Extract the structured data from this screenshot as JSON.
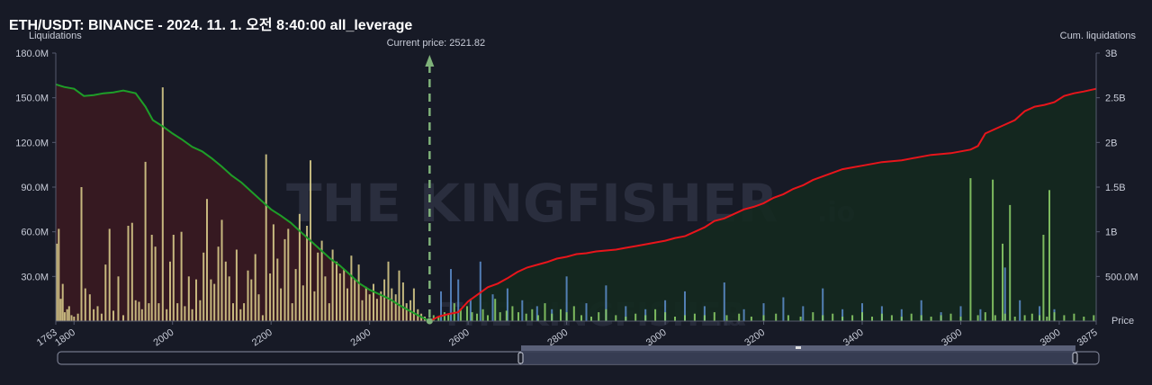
{
  "title": "ETH/USDT: BINANCE - 2024. 11. 1. 오전 8:40:00 all_leverage",
  "watermark": {
    "text": "THE KINGFISHER",
    "suffix": ".io"
  },
  "colors": {
    "background": "#171a26",
    "long_bars": "#e0d48e",
    "short_bars_green": "#8ed46a",
    "short_bars_blue": "#5d8fcf",
    "cum_long_line": "#1e9e28",
    "cum_short_line": "#e8151b",
    "cum_long_fill": "#3a1a21",
    "cum_short_fill": "#14291f",
    "current_price_line": "#7fb27a"
  },
  "chart_data": {
    "type": "bar",
    "xlabel": "Price",
    "ylabel_left": "Liquidations",
    "ylabel_right": "Cum. liquidations",
    "x_range": [
      1763,
      3875
    ],
    "x_ticks": [
      1763,
      1800,
      2000,
      2200,
      2400,
      2600,
      2800,
      3000,
      3200,
      3400,
      3600,
      3800,
      3875
    ],
    "y_left_range": [
      0,
      180000000
    ],
    "y_left_ticks": [
      "30.0M",
      "60.0M",
      "90.0M",
      "120.0M",
      "150.0M",
      "180.0M"
    ],
    "y_right_range": [
      0,
      3000000000
    ],
    "y_right_ticks": [
      "500.0M",
      "1B",
      "1.5B",
      "2B",
      "2.5B",
      "3B"
    ],
    "current_price_label": "Current price: 2521.82",
    "current_price": 2521.82,
    "long_liquidations": {
      "x": [
        1765,
        1769,
        1773,
        1777,
        1781,
        1786,
        1790,
        1795,
        1800,
        1808,
        1815,
        1823,
        1832,
        1840,
        1848,
        1856,
        1864,
        1872,
        1880,
        1890,
        1900,
        1910,
        1918,
        1925,
        1932,
        1938,
        1945,
        1952,
        1958,
        1965,
        1972,
        1980,
        1988,
        1995,
        2002,
        2010,
        2018,
        2025,
        2033,
        2040,
        2048,
        2056,
        2063,
        2070,
        2078,
        2085,
        2093,
        2100,
        2108,
        2115,
        2123,
        2130,
        2138,
        2145,
        2153,
        2160,
        2168,
        2175,
        2183,
        2190,
        2198,
        2205,
        2213,
        2220,
        2228,
        2235,
        2243,
        2250,
        2258,
        2265,
        2273,
        2280,
        2288,
        2295,
        2303,
        2310,
        2318,
        2325,
        2333,
        2340,
        2348,
        2355,
        2363,
        2370,
        2378,
        2385,
        2393,
        2400,
        2408,
        2415,
        2423,
        2430,
        2438,
        2445,
        2453,
        2460,
        2468,
        2475,
        2483,
        2490,
        2498,
        2505,
        2512
      ],
      "y": [
        52,
        62,
        15,
        25,
        6,
        8,
        10,
        4,
        3,
        5,
        90,
        22,
        18,
        8,
        10,
        5,
        38,
        62,
        7,
        30,
        4,
        64,
        66,
        14,
        13,
        8,
        107,
        12,
        58,
        50,
        12,
        157,
        8,
        40,
        58,
        12,
        60,
        10,
        30,
        8,
        28,
        14,
        46,
        82,
        28,
        25,
        50,
        68,
        40,
        30,
        12,
        48,
        8,
        12,
        34,
        28,
        45,
        18,
        4,
        112,
        32,
        65,
        42,
        22,
        55,
        62,
        12,
        35,
        72,
        24,
        64,
        108,
        20,
        46,
        54,
        30,
        12,
        48,
        40,
        32,
        35,
        22,
        44,
        28,
        38,
        14,
        23,
        18,
        25,
        15,
        20,
        28,
        40,
        22,
        18,
        34,
        26,
        12,
        14,
        22,
        8,
        5,
        3
      ]
    },
    "short_liquidations_green": {
      "x": [
        2530,
        2540,
        2552,
        2560,
        2572,
        2585,
        2598,
        2608,
        2618,
        2630,
        2640,
        2655,
        2665,
        2678,
        2690,
        2702,
        2718,
        2730,
        2742,
        2756,
        2770,
        2788,
        2800,
        2815,
        2830,
        2850,
        2865,
        2880,
        2900,
        2920,
        2940,
        2960,
        2980,
        3000,
        3020,
        3040,
        3060,
        3080,
        3100,
        3125,
        3150,
        3175,
        3200,
        3225,
        3250,
        3275,
        3300,
        3320,
        3340,
        3360,
        3380,
        3400,
        3420,
        3440,
        3460,
        3480,
        3500,
        3520,
        3540,
        3560,
        3580,
        3600,
        3620,
        3635,
        3650,
        3670,
        3690,
        3710,
        3730,
        3745,
        3760,
        3775,
        3790,
        3810,
        3830,
        3850,
        3870
      ],
      "y": [
        4,
        3,
        6,
        5,
        12,
        8,
        10,
        6,
        5,
        8,
        4,
        15,
        6,
        7,
        10,
        6,
        5,
        8,
        4,
        12,
        5,
        8,
        6,
        10,
        4,
        3,
        6,
        8,
        4,
        3,
        5,
        4,
        8,
        6,
        3,
        4,
        5,
        4,
        6,
        4,
        5,
        3,
        4,
        5,
        4,
        3,
        6,
        4,
        5,
        3,
        4,
        6,
        3,
        5,
        4,
        3,
        5,
        4,
        3,
        4,
        5,
        3,
        96,
        4,
        6,
        4,
        5,
        3,
        4,
        5,
        4,
        3,
        6,
        4,
        5,
        3,
        4
      ]
    },
    "short_liquidations_blue": {
      "x": [
        2545,
        2565,
        2580,
        2605,
        2625,
        2650,
        2680,
        2710,
        2740,
        2770,
        2800,
        2840,
        2880,
        2920,
        2960,
        3000,
        3040,
        3080,
        3120,
        3160,
        3200,
        3240,
        3280,
        3320,
        3360,
        3400,
        3440,
        3480,
        3520,
        3560,
        3600,
        3640,
        3690,
        3720,
        3760,
        3790
      ],
      "y": [
        20,
        35,
        28,
        15,
        40,
        18,
        22,
        14,
        10,
        8,
        30,
        12,
        24,
        10,
        8,
        14,
        20,
        10,
        26,
        8,
        12,
        16,
        10,
        22,
        8,
        12,
        10,
        8,
        14,
        6,
        10,
        8,
        36,
        14,
        10,
        8
      ]
    },
    "extra_tall_short_bars": {
      "x": [
        3665,
        3685,
        3700,
        3768,
        3780
      ],
      "y": [
        95,
        52,
        78,
        58,
        88
      ]
    },
    "cum_long": {
      "x": [
        1763,
        1780,
        1800,
        1820,
        1840,
        1860,
        1880,
        1900,
        1925,
        1945,
        1960,
        1980,
        2000,
        2020,
        2040,
        2060,
        2080,
        2100,
        2120,
        2140,
        2160,
        2180,
        2200,
        2220,
        2240,
        2260,
        2280,
        2300,
        2320,
        2340,
        2360,
        2380,
        2400,
        2420,
        2440,
        2460,
        2480,
        2500,
        2521.82
      ],
      "y": [
        2.65,
        2.62,
        2.6,
        2.52,
        2.53,
        2.55,
        2.56,
        2.58,
        2.55,
        2.4,
        2.25,
        2.18,
        2.1,
        2.03,
        1.95,
        1.9,
        1.82,
        1.73,
        1.63,
        1.55,
        1.45,
        1.35,
        1.25,
        1.18,
        1.1,
        1.0,
        0.9,
        0.8,
        0.7,
        0.62,
        0.52,
        0.42,
        0.35,
        0.3,
        0.25,
        0.18,
        0.12,
        0.06,
        0
      ]
    },
    "cum_short": {
      "x": [
        2521.82,
        2540,
        2560,
        2580,
        2600,
        2620,
        2640,
        2660,
        2680,
        2700,
        2720,
        2740,
        2760,
        2780,
        2800,
        2820,
        2840,
        2860,
        2880,
        2900,
        2920,
        2940,
        2960,
        2980,
        3000,
        3020,
        3040,
        3060,
        3080,
        3100,
        3120,
        3140,
        3160,
        3180,
        3200,
        3220,
        3240,
        3260,
        3280,
        3300,
        3320,
        3340,
        3360,
        3380,
        3400,
        3420,
        3440,
        3460,
        3480,
        3500,
        3520,
        3540,
        3560,
        3580,
        3600,
        3620,
        3635,
        3650,
        3670,
        3690,
        3710,
        3730,
        3750,
        3770,
        3790,
        3810,
        3830,
        3850,
        3875
      ],
      "y": [
        0,
        0.05,
        0.08,
        0.1,
        0.22,
        0.3,
        0.38,
        0.42,
        0.48,
        0.55,
        0.6,
        0.63,
        0.66,
        0.7,
        0.72,
        0.75,
        0.76,
        0.78,
        0.79,
        0.8,
        0.82,
        0.84,
        0.86,
        0.88,
        0.9,
        0.93,
        0.95,
        1.0,
        1.05,
        1.12,
        1.15,
        1.2,
        1.25,
        1.28,
        1.32,
        1.38,
        1.42,
        1.48,
        1.52,
        1.58,
        1.62,
        1.66,
        1.7,
        1.72,
        1.74,
        1.76,
        1.78,
        1.79,
        1.8,
        1.82,
        1.84,
        1.86,
        1.87,
        1.88,
        1.9,
        1.92,
        1.96,
        2.1,
        2.15,
        2.2,
        2.25,
        2.35,
        2.4,
        2.42,
        2.45,
        2.52,
        2.55,
        2.57,
        2.6
      ]
    }
  }
}
